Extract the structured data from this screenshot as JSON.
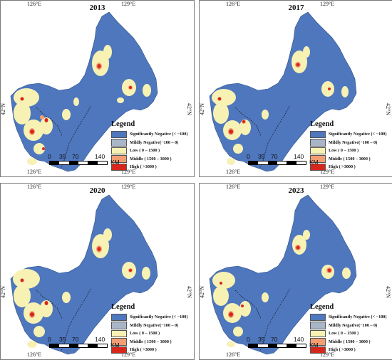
{
  "figure": {
    "tick_labels": {
      "lon_left": "126°E",
      "lon_right": "129°E",
      "lat": "42°N"
    },
    "legend": {
      "title": "Legend",
      "items": [
        {
          "label": "Significantly Negative  (< −100)",
          "color": "#4f77be"
        },
        {
          "label": "Mildly Negative(−100 – 0)",
          "color": "#a9b6c7"
        },
        {
          "label": "Low ( 0 – 1500 )",
          "color": "#f7f2b4"
        },
        {
          "label": "Middle ( 1500 – 3000 )",
          "color": "#f39e72"
        },
        {
          "label": "High ( >3000 )",
          "color": "#d7261c"
        }
      ]
    },
    "scalebar": {
      "labels": [
        "0",
        "35",
        "70",
        "140"
      ],
      "unit": "KM"
    },
    "panels": [
      {
        "year": "2013"
      },
      {
        "year": "2017"
      },
      {
        "year": "2020"
      },
      {
        "year": "2023"
      }
    ]
  }
}
